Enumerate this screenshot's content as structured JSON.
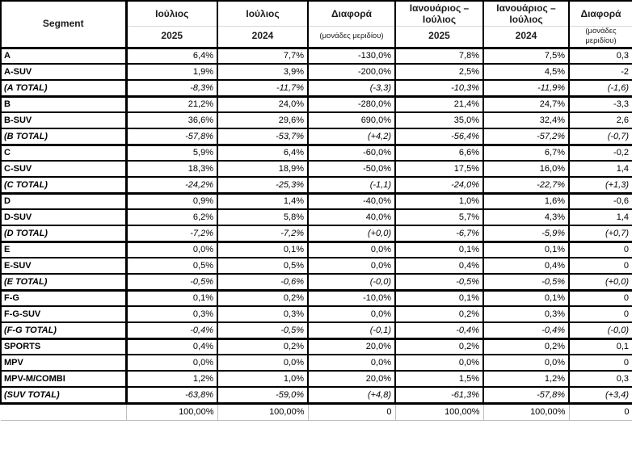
{
  "colors": {
    "table_border": "#000000",
    "header_separator": "#d9d9d9",
    "footer_gridline": "#bfbfbf",
    "text": "#000000",
    "background": "#ffffff"
  },
  "table": {
    "segment_header": "Segment",
    "columns": [
      {
        "line1": "Ιούλιος",
        "line2": "2025",
        "is_diff": false
      },
      {
        "line1": "Ιούλιος",
        "line2": "2024",
        "is_diff": false
      },
      {
        "line1": "Διαφορά",
        "line2": "(μονάδες μεριδίου)",
        "is_diff": true
      },
      {
        "line1": "Ιανουάριος – Ιούλιος",
        "line2": "2025",
        "is_diff": false
      },
      {
        "line1": "Ιανουάριος – Ιούλιος",
        "line2": "2024",
        "is_diff": false
      },
      {
        "line1": "Διαφορά",
        "line2": "(μονάδες μεριδίου)",
        "is_diff": true
      }
    ],
    "rows": [
      {
        "segment": "A",
        "total": false,
        "values": [
          "6,4%",
          "7,7%",
          "-130,0%",
          "7,8%",
          "7,5%",
          "0,3"
        ]
      },
      {
        "segment": "A-SUV",
        "total": false,
        "values": [
          "1,9%",
          "3,9%",
          "-200,0%",
          "2,5%",
          "4,5%",
          "-2"
        ]
      },
      {
        "segment": "(A TOTAL)",
        "total": true,
        "values": [
          "-8,3%",
          "-11,7%",
          "(-3,3)",
          "-10,3%",
          "-11,9%",
          "(-1,6)"
        ]
      },
      {
        "segment": "B",
        "total": false,
        "values": [
          "21,2%",
          "24,0%",
          "-280,0%",
          "21,4%",
          "24,7%",
          "-3,3"
        ]
      },
      {
        "segment": "B-SUV",
        "total": false,
        "values": [
          "36,6%",
          "29,6%",
          "690,0%",
          "35,0%",
          "32,4%",
          "2,6"
        ]
      },
      {
        "segment": "(B TOTAL)",
        "total": true,
        "values": [
          "-57,8%",
          "-53,7%",
          "(+4,2)",
          "-56,4%",
          "-57,2%",
          "(-0,7)"
        ]
      },
      {
        "segment": "C",
        "total": false,
        "values": [
          "5,9%",
          "6,4%",
          "-60,0%",
          "6,6%",
          "6,7%",
          "-0,2"
        ]
      },
      {
        "segment": "C-SUV",
        "total": false,
        "values": [
          "18,3%",
          "18,9%",
          "-50,0%",
          "17,5%",
          "16,0%",
          "1,4"
        ]
      },
      {
        "segment": "(C TOTAL)",
        "total": true,
        "values": [
          "-24,2%",
          "-25,3%",
          "(-1,1)",
          "-24,0%",
          "-22,7%",
          "(+1,3)"
        ]
      },
      {
        "segment": "D",
        "total": false,
        "values": [
          "0,9%",
          "1,4%",
          "-40,0%",
          "1,0%",
          "1,6%",
          "-0,6"
        ]
      },
      {
        "segment": "D-SUV",
        "total": false,
        "values": [
          "6,2%",
          "5,8%",
          "40,0%",
          "5,7%",
          "4,3%",
          "1,4"
        ]
      },
      {
        "segment": "(D TOTAL)",
        "total": true,
        "values": [
          "-7,2%",
          "-7,2%",
          "(+0,0)",
          "-6,7%",
          "-5,9%",
          "(+0,7)"
        ]
      },
      {
        "segment": "E",
        "total": false,
        "values": [
          "0,0%",
          "0,1%",
          "0,0%",
          "0,1%",
          "0,1%",
          "0"
        ]
      },
      {
        "segment": "E-SUV",
        "total": false,
        "values": [
          "0,5%",
          "0,5%",
          "0,0%",
          "0,4%",
          "0,4%",
          "0"
        ]
      },
      {
        "segment": "(E TOTAL)",
        "total": true,
        "values": [
          "-0,5%",
          "-0,6%",
          "(-0,0)",
          "-0,5%",
          "-0,5%",
          "(+0,0)"
        ]
      },
      {
        "segment": "F-G",
        "total": false,
        "values": [
          "0,1%",
          "0,2%",
          "-10,0%",
          "0,1%",
          "0,1%",
          "0"
        ]
      },
      {
        "segment": "F-G-SUV",
        "total": false,
        "values": [
          "0,3%",
          "0,3%",
          "0,0%",
          "0,2%",
          "0,3%",
          "0"
        ]
      },
      {
        "segment": "(F-G TOTAL)",
        "total": true,
        "values": [
          "-0,4%",
          "-0,5%",
          "(-0,1)",
          "-0,4%",
          "-0,4%",
          "(-0,0)"
        ]
      },
      {
        "segment": "SPORTS",
        "total": false,
        "values": [
          "0,4%",
          "0,2%",
          "20,0%",
          "0,2%",
          "0,2%",
          "0,1"
        ]
      },
      {
        "segment": "MPV",
        "total": false,
        "values": [
          "0,0%",
          "0,0%",
          "0,0%",
          "0,0%",
          "0,0%",
          "0"
        ]
      },
      {
        "segment": "MPV-M/COMBI",
        "total": false,
        "values": [
          "1,2%",
          "1,0%",
          "20,0%",
          "1,5%",
          "1,2%",
          "0,3"
        ]
      },
      {
        "segment": "(SUV TOTAL)",
        "total": true,
        "values": [
          "-63,8%",
          "-59,0%",
          "(+4,8)",
          "-61,3%",
          "-57,8%",
          "(+3,4)"
        ]
      }
    ],
    "footer": {
      "segment": "",
      "values": [
        "100,00%",
        "100,00%",
        "0",
        "100,00%",
        "100,00%",
        "0"
      ]
    }
  },
  "chart_data": {
    "type": "table",
    "columns": [
      "Segment",
      "Ιούλιος 2025",
      "Ιούλιος 2024",
      "Διαφορά (μονάδες μεριδίου)",
      "Ιανουάριος – Ιούλιος 2025",
      "Ιανουάριος – Ιούλιος 2024",
      "Διαφορά (μονάδες μεριδίου)"
    ],
    "rows": [
      [
        "A",
        "6,4%",
        "7,7%",
        "-130,0%",
        "7,8%",
        "7,5%",
        "0,3"
      ],
      [
        "A-SUV",
        "1,9%",
        "3,9%",
        "-200,0%",
        "2,5%",
        "4,5%",
        "-2"
      ],
      [
        "(A TOTAL)",
        "-8,3%",
        "-11,7%",
        "(-3,3)",
        "-10,3%",
        "-11,9%",
        "(-1,6)"
      ],
      [
        "B",
        "21,2%",
        "24,0%",
        "-280,0%",
        "21,4%",
        "24,7%",
        "-3,3"
      ],
      [
        "B-SUV",
        "36,6%",
        "29,6%",
        "690,0%",
        "35,0%",
        "32,4%",
        "2,6"
      ],
      [
        "(B TOTAL)",
        "-57,8%",
        "-53,7%",
        "(+4,2)",
        "-56,4%",
        "-57,2%",
        "(-0,7)"
      ],
      [
        "C",
        "5,9%",
        "6,4%",
        "-60,0%",
        "6,6%",
        "6,7%",
        "-0,2"
      ],
      [
        "C-SUV",
        "18,3%",
        "18,9%",
        "-50,0%",
        "17,5%",
        "16,0%",
        "1,4"
      ],
      [
        "(C TOTAL)",
        "-24,2%",
        "-25,3%",
        "(-1,1)",
        "-24,0%",
        "-22,7%",
        "(+1,3)"
      ],
      [
        "D",
        "0,9%",
        "1,4%",
        "-40,0%",
        "1,0%",
        "1,6%",
        "-0,6"
      ],
      [
        "D-SUV",
        "6,2%",
        "5,8%",
        "40,0%",
        "5,7%",
        "4,3%",
        "1,4"
      ],
      [
        "(D TOTAL)",
        "-7,2%",
        "-7,2%",
        "(+0,0)",
        "-6,7%",
        "-5,9%",
        "(+0,7)"
      ],
      [
        "E",
        "0,0%",
        "0,1%",
        "0,0%",
        "0,1%",
        "0,1%",
        "0"
      ],
      [
        "E-SUV",
        "0,5%",
        "0,5%",
        "0,0%",
        "0,4%",
        "0,4%",
        "0"
      ],
      [
        "(E TOTAL)",
        "-0,5%",
        "-0,6%",
        "(-0,0)",
        "-0,5%",
        "-0,5%",
        "(+0,0)"
      ],
      [
        "F-G",
        "0,1%",
        "0,2%",
        "-10,0%",
        "0,1%",
        "0,1%",
        "0"
      ],
      [
        "F-G-SUV",
        "0,3%",
        "0,3%",
        "0,0%",
        "0,2%",
        "0,3%",
        "0"
      ],
      [
        "(F-G TOTAL)",
        "-0,4%",
        "-0,5%",
        "(-0,1)",
        "-0,4%",
        "-0,4%",
        "(-0,0)"
      ],
      [
        "SPORTS",
        "0,4%",
        "0,2%",
        "20,0%",
        "0,2%",
        "0,2%",
        "0,1"
      ],
      [
        "MPV",
        "0,0%",
        "0,0%",
        "0,0%",
        "0,0%",
        "0,0%",
        "0"
      ],
      [
        "MPV-M/COMBI",
        "1,2%",
        "1,0%",
        "20,0%",
        "1,5%",
        "1,2%",
        "0,3"
      ],
      [
        "(SUV TOTAL)",
        "-63,8%",
        "-59,0%",
        "(+4,8)",
        "-61,3%",
        "-57,8%",
        "(+3,4)"
      ],
      [
        "",
        "100,00%",
        "100,00%",
        "0",
        "100,00%",
        "100,00%",
        "0"
      ]
    ]
  }
}
